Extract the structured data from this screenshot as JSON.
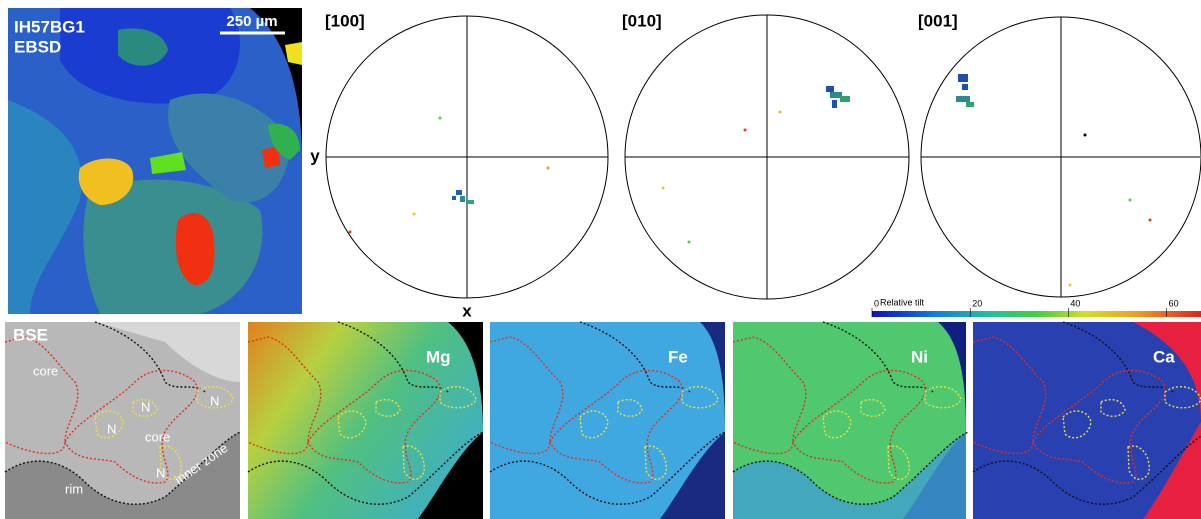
{
  "ebsd_map": {
    "sample": "IH57BG1",
    "method": "EBSD",
    "scale_bar": "250 µm"
  },
  "pole_figures": [
    {
      "label": "[100]"
    },
    {
      "label": "[010]"
    },
    {
      "label": "[001]"
    }
  ],
  "axes": {
    "y": "y",
    "x": "x"
  },
  "colorbar": {
    "label": "Relative tilt",
    "lim": [
      0,
      67
    ],
    "ticks": [
      0,
      20,
      40,
      60
    ]
  },
  "bse": {
    "label": "BSE",
    "annotations": [
      "core",
      "N",
      "N",
      "N",
      "core",
      "N",
      "rim",
      "inner zone"
    ]
  },
  "element_maps": [
    {
      "label": "Mg"
    },
    {
      "label": "Fe"
    },
    {
      "label": "Ni"
    },
    {
      "label": "Ca"
    }
  ]
}
